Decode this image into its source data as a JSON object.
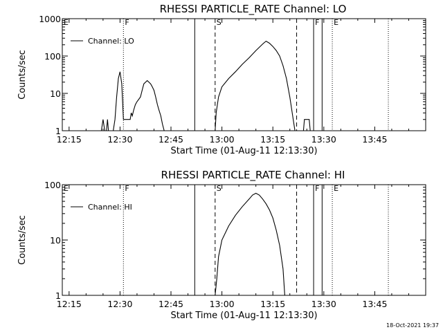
{
  "timestamp": "18-Oct-2021 19:37",
  "chart_data": [
    {
      "type": "line",
      "title": "RHESSI PARTICLE_RATE Channel: LO",
      "xlabel": "Start Time (01-Aug-11 12:13:30)",
      "ylabel": "Counts/sec",
      "xlim": [
        "12:13:30",
        "14:00:00"
      ],
      "ylim": [
        1,
        1000
      ],
      "y_scale": "log",
      "x_ticks": [
        "12:15",
        "12:30",
        "12:45",
        "13:00",
        "13:15",
        "13:30",
        "13:45"
      ],
      "y_ticks": [
        "1",
        "10",
        "100",
        "1000"
      ],
      "legend": {
        "label": "Channel: LO",
        "position": "top-left"
      },
      "markers": [
        {
          "label": "E",
          "time": "12:13:30",
          "style": "dotted"
        },
        {
          "label": "F",
          "time": "12:31",
          "style": "dotted"
        },
        {
          "label": "",
          "time": "12:52",
          "style": "solid"
        },
        {
          "label": "S",
          "time": "12:58",
          "style": "dashed"
        },
        {
          "label": "",
          "time": "13:22",
          "style": "dashed"
        },
        {
          "label": "F",
          "time": "13:27",
          "style": "solid"
        },
        {
          "label": "",
          "time": "13:29.5",
          "style": "solid"
        },
        {
          "label": "E",
          "time": "13:32.5",
          "style": "dotted"
        },
        {
          "label": "",
          "time": "13:49",
          "style": "dotted"
        }
      ],
      "series": [
        {
          "segments": [
            [
              [
                "12:24.5",
                1
              ],
              [
                "12:25",
                2
              ],
              [
                "12:25.5",
                1
              ]
            ],
            [
              [
                "12:26",
                1
              ],
              [
                "12:26.3",
                2
              ],
              [
                "12:26.6",
                1
              ]
            ],
            [
              [
                "12:28",
                1
              ],
              [
                "12:28.5",
                2
              ],
              [
                "12:29",
                8
              ],
              [
                "12:29.5",
                25
              ],
              [
                "12:30",
                38
              ],
              [
                "12:30.5",
                18
              ],
              [
                "12:31",
                2
              ],
              [
                "12:32",
                2
              ],
              [
                "12:33",
                2
              ],
              [
                "12:33.3",
                3
              ],
              [
                "12:33.6",
                2.5
              ],
              [
                "12:34",
                3.5
              ],
              [
                "12:34.5",
                5
              ],
              [
                "12:35",
                6
              ],
              [
                "12:36",
                8
              ],
              [
                "12:36.5",
                12
              ],
              [
                "12:37",
                18
              ],
              [
                "12:38",
                22
              ],
              [
                "12:39",
                18
              ],
              [
                "12:39.5",
                15
              ],
              [
                "12:40",
                12
              ],
              [
                "12:40.5",
                8
              ],
              [
                "12:41",
                5
              ],
              [
                "12:41.5",
                3.5
              ],
              [
                "12:42",
                2.5
              ],
              [
                "12:42.5",
                1.5
              ],
              [
                "12:43",
                1
              ]
            ],
            [
              [
                "12:58",
                1
              ],
              [
                "12:58.3",
                3
              ],
              [
                "12:59",
                8
              ],
              [
                "13:00",
                15
              ],
              [
                "13:02",
                25
              ],
              [
                "13:04",
                38
              ],
              [
                "13:06",
                60
              ],
              [
                "13:08",
                90
              ],
              [
                "13:10",
                140
              ],
              [
                "13:12",
                210
              ],
              [
                "13:13",
                250
              ],
              [
                "13:14",
                220
              ],
              [
                "13:15",
                180
              ],
              [
                "13:16",
                140
              ],
              [
                "13:17",
                100
              ],
              [
                "13:18",
                55
              ],
              [
                "13:19",
                25
              ],
              [
                "13:20",
                8
              ],
              [
                "13:21",
                2
              ],
              [
                "13:21.5",
                1
              ]
            ],
            [
              [
                "13:24",
                1
              ],
              [
                "13:24.3",
                2
              ],
              [
                "13:25.7",
                2
              ],
              [
                "13:26",
                1
              ]
            ]
          ]
        }
      ]
    },
    {
      "type": "line",
      "title": "RHESSI PARTICLE_RATE Channel: HI",
      "xlabel": "Start Time (01-Aug-11 12:13:30)",
      "ylabel": "Counts/sec",
      "xlim": [
        "12:13:30",
        "14:00:00"
      ],
      "ylim": [
        1,
        100
      ],
      "y_scale": "log",
      "x_ticks": [
        "12:15",
        "12:30",
        "12:45",
        "13:00",
        "13:15",
        "13:30",
        "13:45"
      ],
      "y_ticks": [
        "1",
        "10",
        "100"
      ],
      "legend": {
        "label": "Channel: HI",
        "position": "top-left"
      },
      "markers": [
        {
          "label": "E",
          "time": "12:13:30",
          "style": "dotted"
        },
        {
          "label": "F",
          "time": "12:31",
          "style": "dotted"
        },
        {
          "label": "",
          "time": "12:52",
          "style": "solid"
        },
        {
          "label": "S",
          "time": "12:58",
          "style": "dashed"
        },
        {
          "label": "",
          "time": "13:22",
          "style": "dashed"
        },
        {
          "label": "F",
          "time": "13:27",
          "style": "solid"
        },
        {
          "label": "",
          "time": "13:29.5",
          "style": "solid"
        },
        {
          "label": "E",
          "time": "13:32.5",
          "style": "dotted"
        },
        {
          "label": "",
          "time": "13:49",
          "style": "dotted"
        }
      ],
      "series": [
        {
          "segments": [
            [
              [
                "12:58",
                1
              ],
              [
                "12:58.5",
                2
              ],
              [
                "12:59",
                5
              ],
              [
                "13:00",
                10
              ],
              [
                "13:02",
                18
              ],
              [
                "13:04",
                28
              ],
              [
                "13:06",
                40
              ],
              [
                "13:08",
                55
              ],
              [
                "13:09",
                65
              ],
              [
                "13:10",
                70
              ],
              [
                "13:11",
                65
              ],
              [
                "13:12",
                55
              ],
              [
                "13:13",
                45
              ],
              [
                "13:14",
                35
              ],
              [
                "13:15",
                25
              ],
              [
                "13:16",
                15
              ],
              [
                "13:17",
                8
              ],
              [
                "13:18",
                3
              ],
              [
                "13:18.5",
                1
              ]
            ]
          ]
        }
      ]
    }
  ]
}
